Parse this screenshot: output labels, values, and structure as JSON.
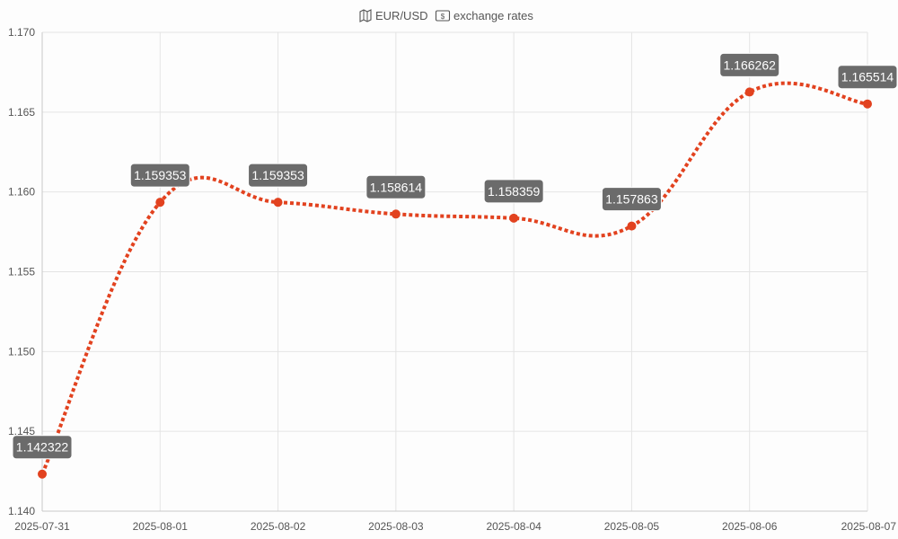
{
  "chart_data": {
    "type": "line",
    "title": "🗺️ EUR/USD 💵 exchange rates",
    "title_parts": {
      "icon1": "map-icon",
      "text1": "EUR/USD",
      "icon2": "dollar-banknote-icon",
      "text2": "exchange rates"
    },
    "x": [
      "2025-07-31",
      "2025-08-01",
      "2025-08-02",
      "2025-08-03",
      "2025-08-04",
      "2025-08-05",
      "2025-08-06",
      "2025-08-07"
    ],
    "series": [
      {
        "values": [
          1.142322,
          1.159353,
          1.159353,
          1.158614,
          1.158359,
          1.157863,
          1.166262,
          1.165514
        ],
        "labels": [
          "1.142322",
          "1.159353",
          "1.159353",
          "1.158614",
          "1.158359",
          "1.157863",
          "1.166262",
          "1.165514"
        ],
        "color": "#e2421f",
        "line_style": "dotted",
        "smooth": true
      }
    ],
    "yticks": [
      "1.140",
      "1.145",
      "1.150",
      "1.155",
      "1.160",
      "1.165",
      "1.170"
    ],
    "ylim": [
      1.14,
      1.17
    ],
    "grid": true,
    "data_labels": true,
    "label_box_color": "#6b6b6b",
    "xlabel": "",
    "ylabel": ""
  }
}
